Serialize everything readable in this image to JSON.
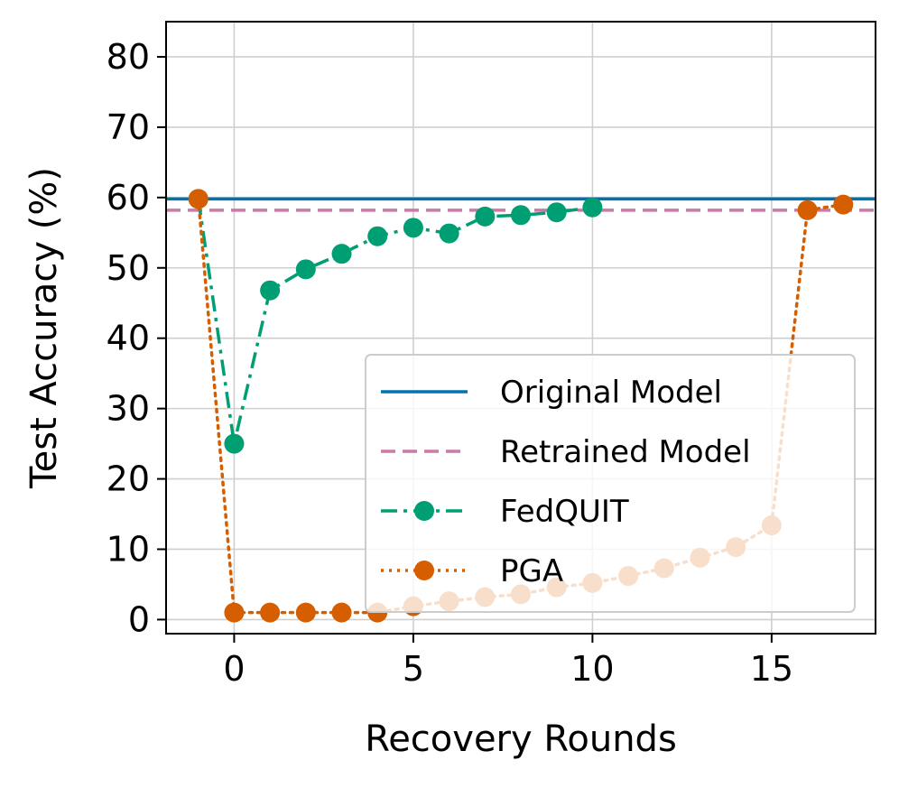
{
  "chart_data": {
    "type": "line",
    "title": "",
    "xlabel": "Recovery Rounds",
    "ylabel": "Test Accuracy (%)",
    "xlim": [
      -1.9,
      17.9
    ],
    "ylim": [
      -2,
      85
    ],
    "xticks": [
      0,
      5,
      10,
      15
    ],
    "yticks": [
      0,
      10,
      20,
      30,
      40,
      50,
      60,
      70,
      80
    ],
    "grid": true,
    "legend_position": "lower-right",
    "series": [
      {
        "name": "Original Model",
        "style": "solid",
        "color": "#0072B2",
        "constant": 59.8
      },
      {
        "name": "Retrained Model",
        "style": "dashed",
        "color": "#CC79A7",
        "constant": 58.2
      },
      {
        "name": "FedQUIT",
        "style": "dashdot",
        "color": "#009E73",
        "marker": "circle",
        "x": [
          -1,
          0,
          1,
          2,
          3,
          4,
          5,
          6,
          7,
          8,
          9,
          10
        ],
        "y": [
          59.8,
          25,
          46.8,
          49.8,
          52.0,
          54.5,
          55.7,
          54.9,
          57.3,
          57.5,
          57.9,
          58.6
        ]
      },
      {
        "name": "PGA",
        "style": "dotted",
        "color": "#D55E00",
        "marker": "circle",
        "x": [
          -1,
          0,
          1,
          2,
          3,
          4,
          5,
          6,
          7,
          8,
          9,
          10,
          11,
          12,
          13,
          14,
          15,
          16,
          17
        ],
        "y": [
          59.8,
          1.0,
          1.0,
          1.0,
          1.0,
          1.0,
          1.9,
          2.6,
          3.2,
          3.6,
          4.6,
          5.2,
          6.2,
          7.3,
          8.8,
          10.3,
          13.4,
          58.2,
          59.0
        ]
      }
    ]
  }
}
